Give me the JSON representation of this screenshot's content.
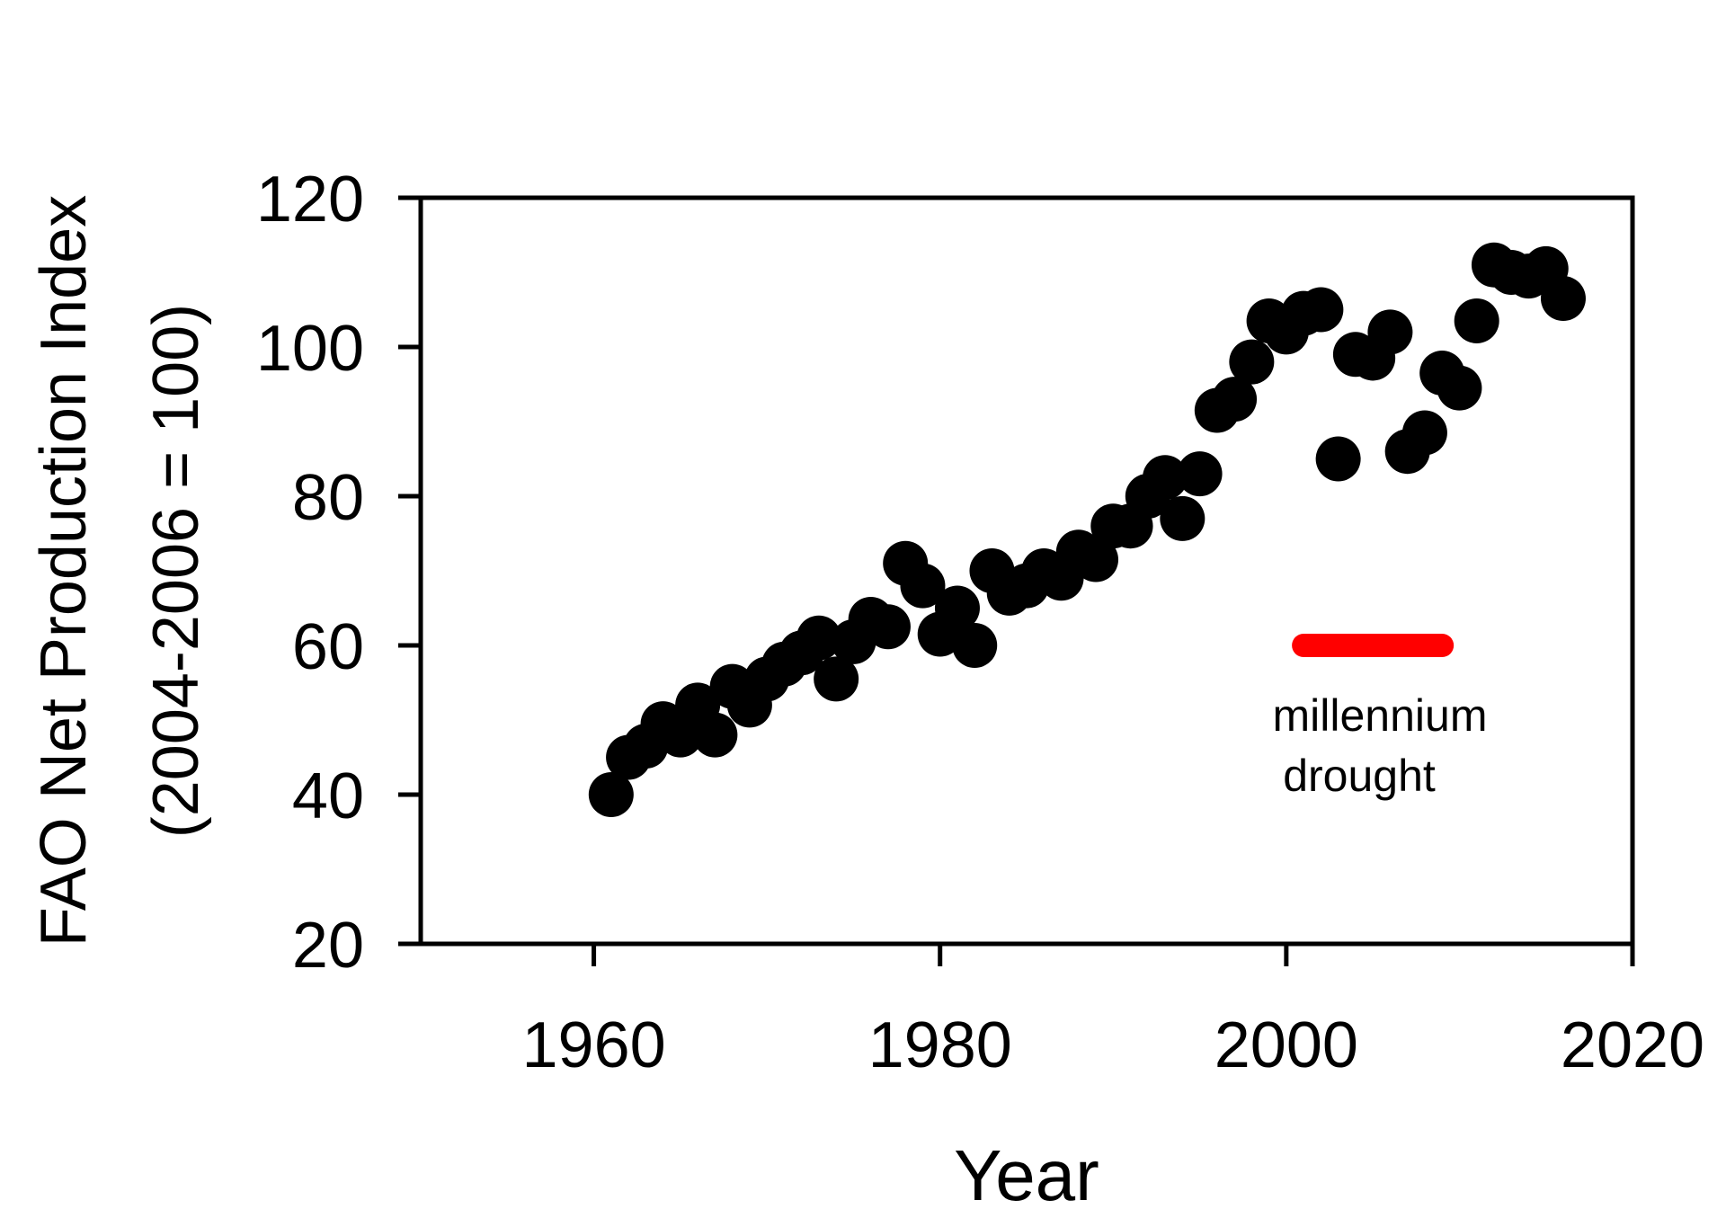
{
  "chart_data": {
    "type": "scatter",
    "xlabel": "Year",
    "ylabel_lines": [
      "FAO Net Production Index",
      "(2004-2006 = 100)"
    ],
    "xlim": [
      1950,
      2020
    ],
    "ylim": [
      20,
      120
    ],
    "x_ticks": [
      1960,
      1980,
      2000,
      2020
    ],
    "y_ticks": [
      20,
      40,
      60,
      80,
      100,
      120
    ],
    "grid": false,
    "marker_color": "#000000",
    "series": [
      {
        "x": [
          1961,
          1962,
          1963,
          1964,
          1965,
          1966,
          1967,
          1968,
          1969,
          1970,
          1971,
          1972,
          1973,
          1974,
          1975,
          1976,
          1977,
          1978,
          1979,
          1980,
          1981,
          1982,
          1983,
          1984,
          1985,
          1986,
          1987,
          1988,
          1989,
          1990,
          1991,
          1992,
          1993,
          1994,
          1995,
          1996,
          1997,
          1998,
          1999,
          2000,
          2001,
          2002,
          2003,
          2004,
          2005,
          2006,
          2007,
          2008,
          2009,
          2010,
          2011,
          2012,
          2013,
          2014,
          2015,
          2016
        ],
        "y": [
          40,
          45,
          46.5,
          49.5,
          48,
          52,
          48,
          54.5,
          52,
          55.5,
          57.5,
          59,
          61,
          55.5,
          60.5,
          63.5,
          62.5,
          71,
          68,
          61.5,
          65,
          60,
          70,
          67,
          68,
          70,
          69,
          72.5,
          71.5,
          76,
          76,
          80,
          82.5,
          77,
          83,
          91.5,
          93,
          98,
          103.5,
          102,
          104.5,
          105,
          85,
          99,
          98.5,
          102,
          86,
          88.5,
          96.5,
          94.5,
          103.5,
          111,
          110,
          109.5,
          110.5,
          106.5
        ]
      }
    ],
    "annotation": {
      "label_lines": [
        "millennium",
        "drought"
      ],
      "x_range": [
        2001,
        2009
      ],
      "y": 60,
      "color": "#ff0000"
    }
  }
}
